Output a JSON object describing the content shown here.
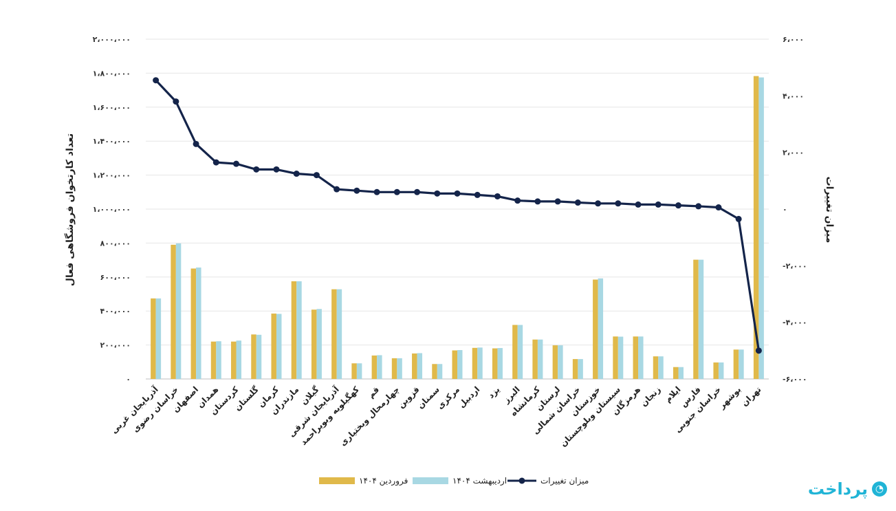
{
  "chart_data": {
    "type": "bar+line",
    "categories": [
      "آذربایجان غربی",
      "خراسان رضوی",
      "اصفهان",
      "همدان",
      "کردستان",
      "گلستان",
      "کرمان",
      "مازندران",
      "گیلان",
      "آذربایجان شرقی",
      "کهگیلویه وبویراحمد",
      "قم",
      "چهارمحال وبختیاری",
      "قزوین",
      "سمنان",
      "مرکزی",
      "اردبیل",
      "یزد",
      "البرز",
      "کرمانشاه",
      "لرستان",
      "خراسان شمالی",
      "خوزستان",
      "سیستان وبلوچستان",
      "هرمزگان",
      "زنجان",
      "ایلام",
      "فارس",
      "خراسان جنوبی",
      "بوشهر",
      "تهران"
    ],
    "series": [
      {
        "name": "فروردین ۱۴۰۴",
        "type": "bar",
        "axis": "left",
        "color": "#e0b94a",
        "values": [
          474000,
          790000,
          650000,
          220000,
          220000,
          262000,
          385000,
          575000,
          408000,
          528000,
          92000,
          138000,
          122000,
          150000,
          88000,
          168000,
          183000,
          180000,
          318000,
          232000,
          198000,
          117000,
          585000,
          250000,
          250000,
          133000,
          70000,
          702000,
          97000,
          173000,
          1783000
        ]
      },
      {
        "name": "اردیبهشت ۱۴۰۴",
        "type": "bar",
        "axis": "left",
        "color": "#a8d8e3",
        "values": [
          474000,
          798000,
          656000,
          222000,
          226000,
          260000,
          383000,
          575000,
          412000,
          528000,
          92000,
          140000,
          122000,
          152000,
          88000,
          170000,
          185000,
          182000,
          318000,
          232000,
          198000,
          117000,
          592000,
          249000,
          250000,
          133000,
          70000,
          702000,
          97000,
          173000,
          1775000
        ]
      },
      {
        "name": "میزان تغییرات",
        "type": "line",
        "axis": "right",
        "color": "#14244a",
        "values": [
          4550,
          3800,
          2300,
          1650,
          1600,
          1400,
          1400,
          1250,
          1200,
          700,
          650,
          600,
          600,
          600,
          550,
          550,
          500,
          450,
          300,
          270,
          270,
          230,
          200,
          200,
          160,
          160,
          130,
          100,
          60,
          -350,
          -5000
        ]
      }
    ],
    "y_left": {
      "label": "تعداد کارتخوان فروشگاهی فعال",
      "range": [
        0,
        2000000
      ],
      "ticks": [
        0,
        200000,
        400000,
        600000,
        800000,
        1000000,
        1200000,
        1400000,
        1600000,
        1800000,
        2000000
      ],
      "tick_labels": [
        "۰",
        "۲۰۰،۰۰۰",
        "۴۰۰،۰۰۰",
        "۶۰۰،۰۰۰",
        "۸۰۰،۰۰۰",
        "۱،۰۰۰،۰۰۰",
        "۱،۲۰۰،۰۰۰",
        "۱،۴۰۰،۰۰۰",
        "۱،۶۰۰،۰۰۰",
        "۱،۸۰۰،۰۰۰",
        "۲،۰۰۰،۰۰۰"
      ]
    },
    "y_right": {
      "label": "میزان تغییرات",
      "range": [
        -6000,
        6000
      ],
      "ticks": [
        -6000,
        -4000,
        -2000,
        0,
        2000,
        4000,
        6000
      ],
      "tick_labels": [
        "-۶،۰۰۰",
        "-۴،۰۰۰",
        "-۲،۰۰۰",
        "۰",
        "۲،۰۰۰",
        "۴،۰۰۰",
        "۶،۰۰۰"
      ]
    },
    "grid": true,
    "legend_position": "bottom-center",
    "legend_order": [
      2,
      1,
      0
    ]
  },
  "brand": {
    "logo_text": "پرداخت",
    "accent": "#20b4d6"
  }
}
